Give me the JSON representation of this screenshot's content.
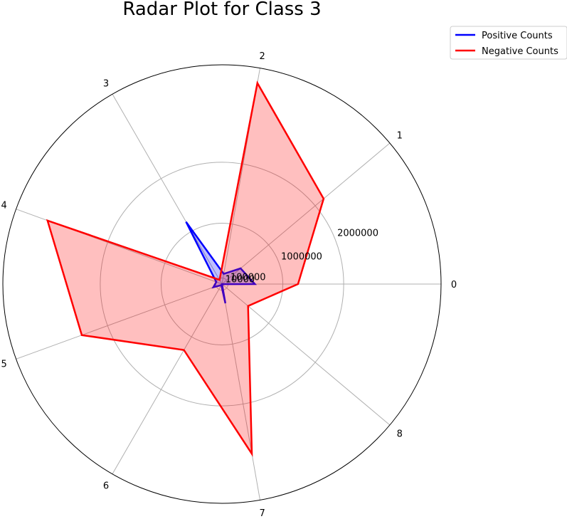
{
  "chart_data": {
    "type": "radar",
    "title": "Radar Plot for Class 3",
    "categories": [
      "0",
      "1",
      "2",
      "3",
      "4",
      "5",
      "6",
      "7",
      "8"
    ],
    "radial_ticks": [
      10000,
      100000,
      1000000,
      2000000
    ],
    "radial_tick_labels": [
      "10000",
      "100000",
      "1000000",
      "2000000"
    ],
    "rmax": 3600000,
    "legend_position": "upper right outside",
    "series": [
      {
        "name": "Positive Counts",
        "color": "#0000ff",
        "fill": "#0000ff",
        "values": [
          540000,
          400000,
          170000,
          1180000,
          100000,
          150000,
          20000,
          320000,
          2000
        ]
      },
      {
        "name": "Negative Counts",
        "color": "#ff0000",
        "fill": "#ff0000",
        "values": [
          1250000,
          2180000,
          3350000,
          80000,
          3050000,
          2450000,
          1250000,
          2830000,
          560000
        ]
      }
    ]
  }
}
